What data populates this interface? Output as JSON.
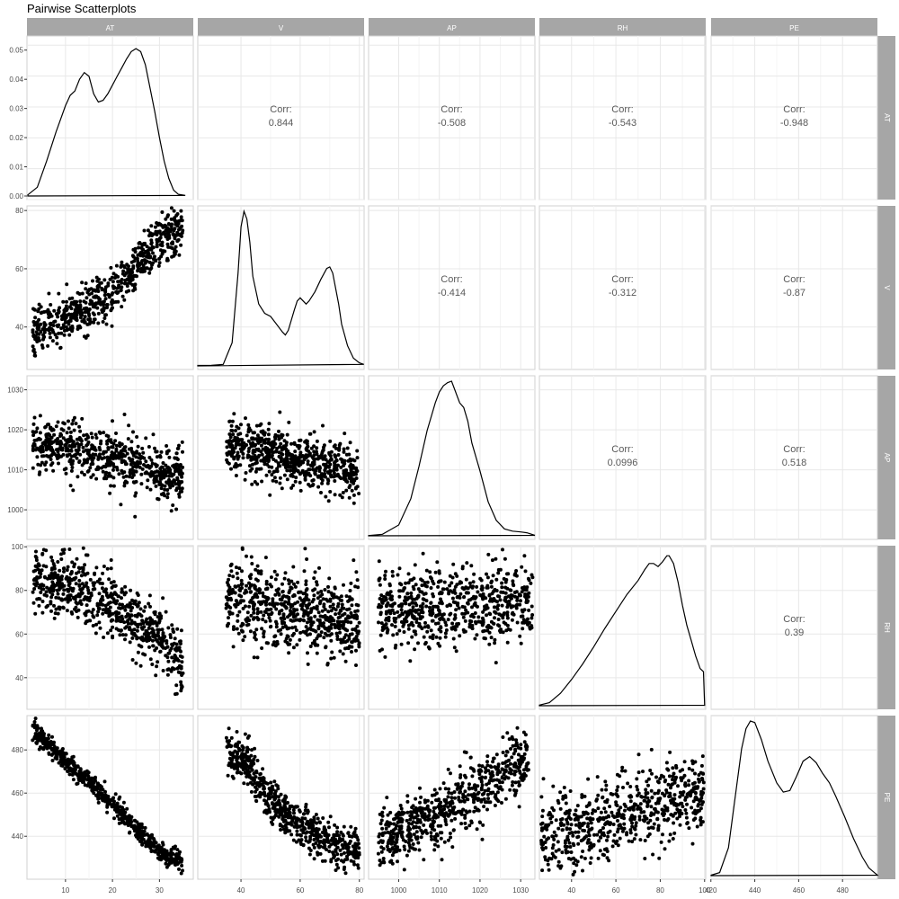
{
  "title": "Pairwise Scatterplots",
  "variables": [
    "AT",
    "V",
    "AP",
    "RH",
    "PE"
  ],
  "chart_data": {
    "type": "scatter",
    "title": "Pairwise Scatterplots",
    "layout": "pairs-matrix",
    "variables": [
      "AT",
      "V",
      "AP",
      "RH",
      "PE"
    ],
    "axes": {
      "AT": {
        "range": [
          1.8,
          37.2
        ],
        "ticks": [
          10,
          20,
          30
        ]
      },
      "V": {
        "range": [
          25.4,
          81.6
        ],
        "ticks": [
          40,
          60,
          80
        ]
      },
      "AP": {
        "range": [
          992.6,
          1033.5
        ],
        "ticks": [
          1000,
          1010,
          1020,
          1030
        ]
      },
      "RH": {
        "range": [
          25.5,
          100.5
        ],
        "ticks": [
          40,
          60,
          80,
          100
        ]
      },
      "PE": {
        "range": [
          420.1,
          495.9
        ],
        "ticks": [
          420,
          440,
          460,
          480
        ]
      }
    },
    "correlations": [
      {
        "row": "AT",
        "col": "V",
        "label": "Corr:",
        "value": "0.844"
      },
      {
        "row": "AT",
        "col": "AP",
        "label": "Corr:",
        "value": "-0.508"
      },
      {
        "row": "AT",
        "col": "RH",
        "label": "Corr:",
        "value": "-0.543"
      },
      {
        "row": "AT",
        "col": "PE",
        "label": "Corr:",
        "value": "-0.948"
      },
      {
        "row": "V",
        "col": "AP",
        "label": "Corr:",
        "value": "-0.414"
      },
      {
        "row": "V",
        "col": "RH",
        "label": "Corr:",
        "value": "-0.312"
      },
      {
        "row": "V",
        "col": "PE",
        "label": "Corr:",
        "value": "-0.87"
      },
      {
        "row": "AP",
        "col": "RH",
        "label": "Corr:",
        "value": "0.0996"
      },
      {
        "row": "AP",
        "col": "PE",
        "label": "Corr:",
        "value": "0.518"
      },
      {
        "row": "RH",
        "col": "PE",
        "label": "Corr:",
        "value": "0.39"
      }
    ],
    "density_ylabels": [
      "0.00",
      "0.01",
      "0.02",
      "0.03",
      "0.04",
      "0.05"
    ],
    "densities": {
      "AT": {
        "ymax": 0.053,
        "points": [
          [
            2,
            0.0004
          ],
          [
            4,
            0.003
          ],
          [
            6,
            0.012
          ],
          [
            8,
            0.022
          ],
          [
            10,
            0.031
          ],
          [
            11,
            0.0345
          ],
          [
            12,
            0.036
          ],
          [
            13,
            0.04
          ],
          [
            14,
            0.0423
          ],
          [
            15,
            0.041
          ],
          [
            16,
            0.035
          ],
          [
            17,
            0.0322
          ],
          [
            18,
            0.0328
          ],
          [
            19,
            0.035
          ],
          [
            20,
            0.038
          ],
          [
            21,
            0.041
          ],
          [
            22,
            0.044
          ],
          [
            23,
            0.047
          ],
          [
            24,
            0.0495
          ],
          [
            25,
            0.0505
          ],
          [
            26,
            0.0495
          ],
          [
            27,
            0.045
          ],
          [
            28,
            0.037
          ],
          [
            29,
            0.029
          ],
          [
            30,
            0.02
          ],
          [
            31,
            0.012
          ],
          [
            32,
            0.006
          ],
          [
            33,
            0.002
          ],
          [
            34,
            0.0006
          ],
          [
            35.5,
            0.0002
          ]
        ]
      },
      "V": {
        "ymax": 1,
        "points": [
          [
            25.4,
            0.003
          ],
          [
            30,
            0.004
          ],
          [
            34,
            0.01
          ],
          [
            37,
            0.15
          ],
          [
            39,
            0.6
          ],
          [
            40,
            0.9
          ],
          [
            41,
            1.0
          ],
          [
            42,
            0.95
          ],
          [
            43,
            0.8
          ],
          [
            44,
            0.58
          ],
          [
            46,
            0.4
          ],
          [
            48,
            0.34
          ],
          [
            50,
            0.32
          ],
          [
            52,
            0.27
          ],
          [
            54,
            0.22
          ],
          [
            55,
            0.2
          ],
          [
            56,
            0.23
          ],
          [
            58,
            0.36
          ],
          [
            59,
            0.42
          ],
          [
            60,
            0.44
          ],
          [
            62,
            0.4
          ],
          [
            63,
            0.42
          ],
          [
            65,
            0.48
          ],
          [
            67,
            0.56
          ],
          [
            69,
            0.63
          ],
          [
            70,
            0.64
          ],
          [
            71,
            0.6
          ],
          [
            72,
            0.5
          ],
          [
            73,
            0.4
          ],
          [
            74,
            0.27
          ],
          [
            76,
            0.13
          ],
          [
            78,
            0.05
          ],
          [
            80,
            0.02
          ],
          [
            81.5,
            0.01
          ]
        ]
      },
      "AP": {
        "ymax": 1,
        "points": [
          [
            992.6,
            0.002
          ],
          [
            996,
            0.01
          ],
          [
            1000,
            0.07
          ],
          [
            1003,
            0.24
          ],
          [
            1005,
            0.45
          ],
          [
            1007,
            0.68
          ],
          [
            1009,
            0.86
          ],
          [
            1010,
            0.93
          ],
          [
            1011,
            0.97
          ],
          [
            1012,
            0.99
          ],
          [
            1013,
            1.0
          ],
          [
            1014,
            0.93
          ],
          [
            1015,
            0.86
          ],
          [
            1016,
            0.83
          ],
          [
            1017,
            0.74
          ],
          [
            1018,
            0.6
          ],
          [
            1020,
            0.42
          ],
          [
            1022,
            0.22
          ],
          [
            1024,
            0.1
          ],
          [
            1026,
            0.045
          ],
          [
            1028,
            0.03
          ],
          [
            1030,
            0.025
          ],
          [
            1031.5,
            0.02
          ],
          [
            1033.5,
            0.003
          ]
        ]
      },
      "RH": {
        "ymax": 1,
        "points": [
          [
            25.5,
            0.004
          ],
          [
            30,
            0.02
          ],
          [
            35,
            0.08
          ],
          [
            40,
            0.17
          ],
          [
            45,
            0.27
          ],
          [
            50,
            0.38
          ],
          [
            55,
            0.5
          ],
          [
            60,
            0.61
          ],
          [
            65,
            0.72
          ],
          [
            70,
            0.81
          ],
          [
            73,
            0.88
          ],
          [
            75,
            0.92
          ],
          [
            77,
            0.92
          ],
          [
            79,
            0.9
          ],
          [
            81,
            0.93
          ],
          [
            83,
            0.97
          ],
          [
            84,
            0.97
          ],
          [
            86,
            0.92
          ],
          [
            88,
            0.8
          ],
          [
            90,
            0.65
          ],
          [
            92,
            0.52
          ],
          [
            94,
            0.42
          ],
          [
            96,
            0.32
          ],
          [
            98,
            0.24
          ],
          [
            99.5,
            0.22
          ],
          [
            100,
            0.003
          ]
        ]
      },
      "PE": {
        "ymax": 1,
        "points": [
          [
            420.1,
            0.003
          ],
          [
            424,
            0.02
          ],
          [
            428,
            0.18
          ],
          [
            431,
            0.5
          ],
          [
            434,
            0.82
          ],
          [
            436,
            0.95
          ],
          [
            438,
            1.0
          ],
          [
            440,
            0.99
          ],
          [
            443,
            0.88
          ],
          [
            446,
            0.74
          ],
          [
            450,
            0.6
          ],
          [
            453,
            0.54
          ],
          [
            456,
            0.55
          ],
          [
            459,
            0.64
          ],
          [
            462,
            0.74
          ],
          [
            465,
            0.77
          ],
          [
            468,
            0.73
          ],
          [
            471,
            0.66
          ],
          [
            474,
            0.6
          ],
          [
            477,
            0.51
          ],
          [
            481,
            0.38
          ],
          [
            485,
            0.24
          ],
          [
            489,
            0.12
          ],
          [
            492,
            0.05
          ],
          [
            495.9,
            0.003
          ]
        ]
      }
    },
    "scatter": {
      "AT|V": {
        "trend": [
          [
            3,
            38
          ],
          [
            10,
            42
          ],
          [
            20,
            52
          ],
          [
            25,
            62
          ],
          [
            30,
            70
          ],
          [
            35,
            74
          ]
        ],
        "spread": 7
      },
      "AT|AP": {
        "trend": [
          [
            3,
            1016
          ],
          [
            10,
            1016
          ],
          [
            20,
            1013
          ],
          [
            30,
            1010
          ],
          [
            35,
            1009
          ]
        ],
        "spread": 6
      },
      "AT|RH": {
        "trend": [
          [
            3,
            85
          ],
          [
            10,
            82
          ],
          [
            20,
            74
          ],
          [
            30,
            58
          ],
          [
            35,
            45
          ]
        ],
        "spread": 13
      },
      "AT|PE": {
        "trend": [
          [
            3,
            490
          ],
          [
            10,
            475
          ],
          [
            20,
            455
          ],
          [
            30,
            432
          ],
          [
            35,
            428
          ]
        ],
        "spread": 4
      },
      "V|AP": {
        "trend": [
          [
            35,
            1016
          ],
          [
            45,
            1015
          ],
          [
            60,
            1012
          ],
          [
            70,
            1011
          ],
          [
            80,
            1008
          ]
        ],
        "spread": 6
      },
      "V|RH": {
        "trend": [
          [
            35,
            76
          ],
          [
            45,
            74
          ],
          [
            60,
            70
          ],
          [
            70,
            68
          ],
          [
            80,
            64
          ]
        ],
        "spread": 16
      },
      "V|PE": {
        "trend": [
          [
            35,
            480
          ],
          [
            42,
            475
          ],
          [
            50,
            455
          ],
          [
            60,
            445
          ],
          [
            70,
            437
          ],
          [
            80,
            433
          ]
        ],
        "spread": 9
      },
      "AP|RH": {
        "trend": [
          [
            995,
            72
          ],
          [
            1005,
            73
          ],
          [
            1015,
            73
          ],
          [
            1025,
            74
          ],
          [
            1033,
            76
          ]
        ],
        "spread": 16
      },
      "AP|PE": {
        "trend": [
          [
            995,
            440
          ],
          [
            1005,
            445
          ],
          [
            1015,
            455
          ],
          [
            1025,
            468
          ],
          [
            1032,
            475
          ]
        ],
        "spread": 13
      },
      "RH|PE": {
        "trend": [
          [
            25,
            440
          ],
          [
            50,
            445
          ],
          [
            75,
            455
          ],
          [
            100,
            460
          ]
        ],
        "spread": 16
      }
    }
  }
}
